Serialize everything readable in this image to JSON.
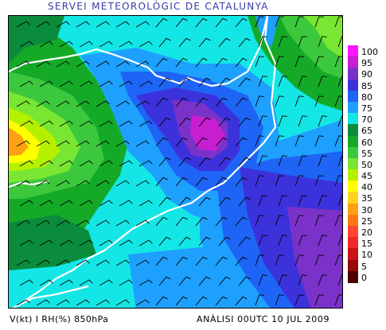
{
  "header": {
    "title": "SERVEI METEOROLÒGIC DE CATALUNYA"
  },
  "footer": {
    "left_label": "V(kt) I RH(%) 850hPa",
    "right_label": "ANÀLISI 00UTC 10 JUL 2009"
  },
  "legend": {
    "items": [
      {
        "label": "100",
        "color": "#ff14ff"
      },
      {
        "label": "95",
        "color": "#c81ed2"
      },
      {
        "label": "90",
        "color": "#7a32c8"
      },
      {
        "label": "85",
        "color": "#3c32dc"
      },
      {
        "label": "80",
        "color": "#1e64f5"
      },
      {
        "label": "75",
        "color": "#1ea0ff"
      },
      {
        "label": "70",
        "color": "#14e6e6"
      },
      {
        "label": "65",
        "color": "#0a8c3c"
      },
      {
        "label": "60",
        "color": "#14aa28"
      },
      {
        "label": "55",
        "color": "#3cc83c"
      },
      {
        "label": "50",
        "color": "#78e632"
      },
      {
        "label": "45",
        "color": "#b4f000"
      },
      {
        "label": "40",
        "color": "#ffff00"
      },
      {
        "label": "35",
        "color": "#ffd21e"
      },
      {
        "label": "30",
        "color": "#ffa014"
      },
      {
        "label": "25",
        "color": "#ff7814"
      },
      {
        "label": "20",
        "color": "#ff4632"
      },
      {
        "label": "15",
        "color": "#f02828"
      },
      {
        "label": "10",
        "color": "#c81414"
      },
      {
        "label": "5",
        "color": "#960a0a"
      },
      {
        "label": "0",
        "color": "#500000"
      }
    ]
  },
  "colors": {
    "sea_base": "#1ea0ff",
    "coastline": "#ffffff",
    "wind_barb": "#000000"
  }
}
